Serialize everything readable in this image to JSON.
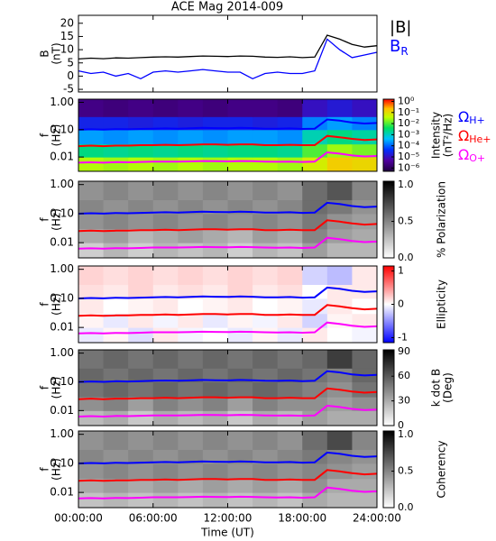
{
  "chart_data": [
    {
      "type": "line",
      "title": "ACE Mag 2014-009",
      "y_label": [
        "B",
        "(nT)"
      ],
      "x": [
        0,
        1,
        2,
        3,
        4,
        5,
        6,
        7,
        8,
        9,
        10,
        11,
        12,
        13,
        14,
        15,
        16,
        17,
        18,
        19,
        20,
        21,
        22,
        23,
        24
      ],
      "xlim": [
        0,
        24
      ],
      "xticks": [
        {
          "value": 0,
          "label": "00:00:00"
        },
        {
          "value": 6,
          "label": "06:00:00"
        },
        {
          "value": 12,
          "label": "12:00:00"
        },
        {
          "value": 18,
          "label": "18:00:00"
        },
        {
          "value": 24,
          "label": "24:00:00"
        }
      ],
      "x_label": "Time (UT)",
      "ylim": [
        -6,
        23
      ],
      "yticks": [
        -5,
        0,
        5,
        10,
        15,
        20
      ],
      "series": [
        {
          "name": "|B|",
          "color": "#000000",
          "values": [
            6.5,
            6.8,
            6.6,
            6.9,
            6.8,
            7.0,
            7.2,
            7.3,
            7.2,
            7.4,
            7.6,
            7.5,
            7.4,
            7.6,
            7.5,
            7.2,
            7.1,
            7.3,
            7.0,
            7.2,
            15.5,
            14.0,
            12.0,
            11.0,
            11.5
          ]
        },
        {
          "name": "B",
          "subscript": "R",
          "color": "#0000ff",
          "values": [
            2,
            1,
            1.5,
            0,
            1,
            -1,
            1.5,
            2,
            1.5,
            2,
            2.5,
            2,
            1.5,
            1.5,
            -1,
            1,
            1.5,
            1,
            1,
            2,
            14,
            10,
            7,
            8,
            9
          ]
        }
      ]
    },
    {
      "type": "heatmap",
      "y_label": [
        "f",
        "(Hz)"
      ],
      "log_y": true,
      "ylim": [
        0.003,
        1.3
      ],
      "yticks": [
        {
          "value": 1,
          "label": "1.00"
        },
        {
          "value": 0.1,
          "label": "0.10"
        },
        {
          "value": 0.01,
          "label": "0.01"
        }
      ],
      "xbins": [
        0,
        2,
        4,
        6,
        8,
        10,
        12,
        14,
        16,
        18,
        20,
        22,
        24
      ],
      "ybins": [
        0.003,
        0.01,
        0.03,
        0.1,
        0.3,
        1.3
      ],
      "colormap": "rainbow",
      "zlim": [
        -6.3,
        0.2
      ],
      "zticks": [
        {
          "value": 0,
          "label": "10⁰"
        },
        {
          "value": -1,
          "label": "10⁻¹"
        },
        {
          "value": -2,
          "label": "10⁻²"
        },
        {
          "value": -3,
          "label": "10⁻³"
        },
        {
          "value": -4,
          "label": "10⁻⁴"
        },
        {
          "value": -5,
          "label": "10⁻⁵"
        },
        {
          "value": -6,
          "label": "10⁻⁶"
        }
      ],
      "z_label": [
        "Intensity",
        "(nT²/Hz)"
      ],
      "z": [
        [
          -1.5,
          -1.6,
          -1.5,
          -1.6,
          -1.5,
          -1.6,
          -1.5,
          -1.5,
          -1.6,
          -1.2,
          -0.8,
          -0.9
        ],
        [
          -2.6,
          -2.7,
          -2.6,
          -2.7,
          -2.6,
          -2.7,
          -2.6,
          -2.6,
          -2.7,
          -2.0,
          -1.6,
          -1.8
        ],
        [
          -3.6,
          -3.7,
          -3.6,
          -3.7,
          -3.6,
          -3.7,
          -3.6,
          -3.6,
          -3.7,
          -2.9,
          -2.6,
          -2.8
        ],
        [
          -4.6,
          -4.6,
          -4.7,
          -4.6,
          -4.7,
          -4.6,
          -4.6,
          -4.7,
          -4.6,
          -3.8,
          -3.6,
          -3.8
        ],
        [
          -5.6,
          -5.7,
          -5.6,
          -5.7,
          -5.6,
          -5.7,
          -5.6,
          -5.6,
          -5.7,
          -5.0,
          -4.8,
          -5.0
        ]
      ],
      "series": [
        {
          "name": "Ω",
          "subscript": "H+",
          "color": "#0000ff",
          "values": [
            0.099,
            0.103,
            0.1,
            0.105,
            0.103,
            0.106,
            0.109,
            0.111,
            0.109,
            0.112,
            0.116,
            0.114,
            0.112,
            0.116,
            0.114,
            0.109,
            0.108,
            0.111,
            0.106,
            0.109,
            0.236,
            0.213,
            0.182,
            0.167,
            0.175
          ]
        },
        {
          "name": "Ω",
          "subscript": "He+",
          "color": "#ff0000",
          "values": [
            0.025,
            0.026,
            0.025,
            0.026,
            0.026,
            0.027,
            0.027,
            0.028,
            0.027,
            0.028,
            0.029,
            0.029,
            0.028,
            0.029,
            0.029,
            0.027,
            0.027,
            0.028,
            0.027,
            0.027,
            0.059,
            0.053,
            0.046,
            0.042,
            0.044
          ]
        },
        {
          "name": "Ω",
          "subscript": "O+",
          "color": "#ff00ff",
          "values": [
            0.0062,
            0.0064,
            0.0062,
            0.0065,
            0.0064,
            0.0066,
            0.0068,
            0.0068,
            0.0068,
            0.0069,
            0.0071,
            0.007,
            0.0069,
            0.0071,
            0.007,
            0.0068,
            0.0067,
            0.0068,
            0.0066,
            0.0068,
            0.0148,
            0.0133,
            0.0114,
            0.0105,
            0.0109
          ]
        }
      ]
    },
    {
      "type": "heatmap",
      "y_label": [
        "f",
        "(Hz)"
      ],
      "log_y": true,
      "ylim": [
        0.003,
        1.3
      ],
      "yticks": [
        {
          "value": 1,
          "label": "1.00"
        },
        {
          "value": 0.1,
          "label": "0.10"
        },
        {
          "value": 0.01,
          "label": "0.01"
        }
      ],
      "xbins": [
        0,
        2,
        4,
        6,
        8,
        10,
        12,
        14,
        16,
        18,
        20,
        22,
        24
      ],
      "ybins": [
        0.003,
        0.01,
        0.03,
        0.1,
        0.3,
        1.3
      ],
      "colormap": "gray",
      "zlim": [
        0,
        1.05
      ],
      "zticks": [
        {
          "value": 0,
          "label": "0.0"
        },
        {
          "value": 0.5,
          "label": "0.5"
        },
        {
          "value": 1,
          "label": "1.0"
        }
      ],
      "z_label": [
        "% Polarization"
      ],
      "z": [
        [
          0.2,
          0.3,
          0.2,
          0.3,
          0.25,
          0.3,
          0.2,
          0.3,
          0.25,
          0.4,
          0.3,
          0.3
        ],
        [
          0.35,
          0.4,
          0.3,
          0.35,
          0.4,
          0.35,
          0.3,
          0.4,
          0.35,
          0.5,
          0.4,
          0.35
        ],
        [
          0.45,
          0.5,
          0.45,
          0.5,
          0.45,
          0.5,
          0.45,
          0.5,
          0.45,
          0.55,
          0.45,
          0.4
        ],
        [
          0.5,
          0.45,
          0.5,
          0.45,
          0.5,
          0.45,
          0.5,
          0.45,
          0.5,
          0.6,
          0.55,
          0.45
        ],
        [
          0.45,
          0.5,
          0.45,
          0.5,
          0.45,
          0.5,
          0.45,
          0.5,
          0.45,
          0.6,
          0.7,
          0.5
        ]
      ]
    },
    {
      "type": "heatmap",
      "y_label": [
        "f",
        "(Hz)"
      ],
      "log_y": true,
      "ylim": [
        0.003,
        1.3
      ],
      "yticks": [
        {
          "value": 1,
          "label": "1.00"
        },
        {
          "value": 0.1,
          "label": "0.10"
        },
        {
          "value": 0.01,
          "label": "0.01"
        }
      ],
      "xbins": [
        0,
        2,
        4,
        6,
        8,
        10,
        12,
        14,
        16,
        18,
        20,
        22,
        24
      ],
      "ybins": [
        0.003,
        0.01,
        0.03,
        0.1,
        0.3,
        1.3
      ],
      "colormap": "bwr",
      "zlim": [
        -1.15,
        1.15
      ],
      "zticks": [
        1,
        0,
        -1
      ],
      "z_label": [
        "Ellipticity"
      ],
      "z": [
        [
          -0.1,
          0.05,
          -0.15,
          0.1,
          -0.05,
          0.0,
          -0.1,
          0.05,
          -0.1,
          0.1,
          0.0,
          -0.05
        ],
        [
          0.05,
          -0.1,
          0.1,
          -0.05,
          0.1,
          -0.1,
          0.05,
          -0.05,
          0.1,
          -0.2,
          0.05,
          0.1
        ],
        [
          0.1,
          0.0,
          0.05,
          0.1,
          0.0,
          0.05,
          0.1,
          0.0,
          0.05,
          -0.1,
          0.1,
          0.0
        ],
        [
          0.15,
          0.1,
          0.2,
          0.1,
          0.15,
          0.1,
          0.2,
          0.1,
          0.15,
          0.0,
          0.1,
          0.1
        ],
        [
          0.2,
          0.15,
          0.2,
          0.15,
          0.2,
          0.15,
          0.2,
          0.15,
          0.2,
          -0.2,
          -0.3,
          0.1
        ]
      ]
    },
    {
      "type": "heatmap",
      "y_label": [
        "f",
        "(Hz)"
      ],
      "log_y": true,
      "ylim": [
        0.003,
        1.3
      ],
      "yticks": [
        {
          "value": 1,
          "label": "1.00"
        },
        {
          "value": 0.1,
          "label": "0.10"
        },
        {
          "value": 0.01,
          "label": "0.01"
        }
      ],
      "xbins": [
        0,
        2,
        4,
        6,
        8,
        10,
        12,
        14,
        16,
        18,
        20,
        22,
        24
      ],
      "ybins": [
        0.003,
        0.01,
        0.03,
        0.1,
        0.3,
        1.3
      ],
      "colormap": "gray",
      "zlim": [
        0,
        92
      ],
      "zticks": [
        90,
        60,
        30,
        0
      ],
      "z_label": [
        "k dot B",
        "(Deg)"
      ],
      "z": [
        [
          25,
          30,
          20,
          30,
          25,
          30,
          20,
          30,
          25,
          35,
          30,
          30
        ],
        [
          40,
          45,
          35,
          45,
          40,
          45,
          35,
          45,
          40,
          40,
          35,
          40
        ],
        [
          50,
          55,
          50,
          55,
          50,
          55,
          50,
          55,
          50,
          45,
          40,
          50
        ],
        [
          55,
          50,
          55,
          50,
          55,
          50,
          55,
          50,
          55,
          50,
          45,
          55
        ],
        [
          50,
          55,
          50,
          55,
          50,
          55,
          50,
          55,
          50,
          55,
          70,
          55
        ]
      ]
    },
    {
      "type": "heatmap",
      "y_label": [
        "f",
        "(Hz)"
      ],
      "log_y": true,
      "ylim": [
        0.003,
        1.3
      ],
      "yticks": [
        {
          "value": 1,
          "label": "1.00"
        },
        {
          "value": 0.1,
          "label": "0.10"
        },
        {
          "value": 0.01,
          "label": "0.01"
        }
      ],
      "xbins": [
        0,
        2,
        4,
        6,
        8,
        10,
        12,
        14,
        16,
        18,
        20,
        22,
        24
      ],
      "ybins": [
        0.003,
        0.01,
        0.03,
        0.1,
        0.3,
        1.3
      ],
      "colormap": "gray",
      "zlim": [
        0,
        1.05
      ],
      "zticks": [
        {
          "value": 1,
          "label": "1.0"
        },
        {
          "value": 0.5,
          "label": "0.5"
        },
        {
          "value": 0,
          "label": "0.0"
        }
      ],
      "z_label": [
        "Coherency"
      ],
      "z": [
        [
          0.25,
          0.3,
          0.25,
          0.3,
          0.25,
          0.3,
          0.25,
          0.3,
          0.25,
          0.35,
          0.3,
          0.3
        ],
        [
          0.35,
          0.4,
          0.35,
          0.4,
          0.35,
          0.4,
          0.35,
          0.4,
          0.35,
          0.45,
          0.35,
          0.35
        ],
        [
          0.45,
          0.5,
          0.45,
          0.5,
          0.45,
          0.5,
          0.45,
          0.5,
          0.45,
          0.5,
          0.45,
          0.4
        ],
        [
          0.5,
          0.45,
          0.5,
          0.45,
          0.5,
          0.45,
          0.5,
          0.45,
          0.5,
          0.55,
          0.5,
          0.45
        ],
        [
          0.45,
          0.5,
          0.45,
          0.5,
          0.45,
          0.5,
          0.45,
          0.5,
          0.45,
          0.6,
          0.75,
          0.5
        ]
      ]
    }
  ]
}
